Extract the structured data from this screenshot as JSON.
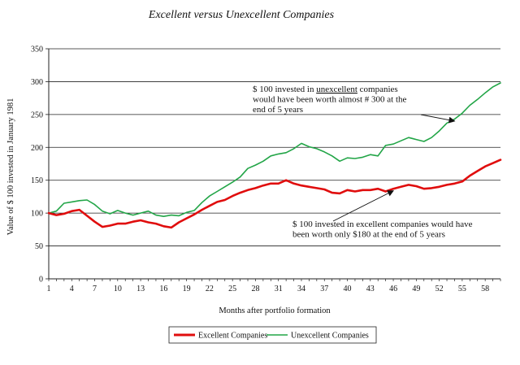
{
  "chart_data": {
    "type": "line",
    "title": "Excellent versus Unexcellent Companies",
    "xlabel": "Months after portfolio formation",
    "ylabel": "Value of $ 100 invested in January 1981",
    "ylim": [
      0,
      350
    ],
    "yticks": [
      0,
      50,
      100,
      150,
      200,
      250,
      300,
      350
    ],
    "xlim": [
      1,
      60
    ],
    "xticks": [
      1,
      4,
      7,
      10,
      13,
      16,
      19,
      22,
      25,
      28,
      31,
      34,
      37,
      40,
      43,
      46,
      49,
      52,
      55,
      58
    ],
    "grid": "horizontal",
    "x": [
      1,
      2,
      3,
      4,
      5,
      6,
      7,
      8,
      9,
      10,
      11,
      12,
      13,
      14,
      15,
      16,
      17,
      18,
      19,
      20,
      21,
      22,
      23,
      24,
      25,
      26,
      27,
      28,
      29,
      30,
      31,
      32,
      33,
      34,
      35,
      36,
      37,
      38,
      39,
      40,
      41,
      42,
      43,
      44,
      45,
      46,
      47,
      48,
      49,
      50,
      51,
      52,
      53,
      54,
      55,
      56,
      57,
      58,
      59,
      60
    ],
    "series": [
      {
        "name": "Excellent Companies",
        "color": "#e00d0d",
        "values": [
          100,
          97,
          99,
          103,
          105,
          96,
          87,
          79,
          81,
          84,
          84,
          87,
          89,
          86,
          84,
          80,
          78,
          86,
          92,
          98,
          105,
          111,
          117,
          120,
          126,
          131,
          135,
          138,
          142,
          145,
          145,
          150,
          145,
          142,
          140,
          138,
          136,
          131,
          130,
          135,
          133,
          135,
          135,
          137,
          133,
          137,
          140,
          143,
          141,
          137,
          138,
          140,
          143,
          145,
          148,
          157,
          164,
          171,
          176,
          181
        ]
      },
      {
        "name": "Unexcellent Companies",
        "color": "#22a547",
        "values": [
          100,
          103,
          115,
          117,
          119,
          120,
          113,
          103,
          99,
          104,
          100,
          97,
          100,
          103,
          97,
          95,
          97,
          96,
          101,
          104,
          116,
          126,
          133,
          140,
          147,
          155,
          168,
          173,
          179,
          187,
          190,
          192,
          198,
          206,
          201,
          198,
          193,
          187,
          179,
          184,
          183,
          185,
          189,
          187,
          203,
          205,
          210,
          215,
          212,
          209,
          215,
          225,
          237,
          243,
          252,
          264,
          273,
          283,
          292,
          298
        ]
      }
    ],
    "legend_position": "bottom-center",
    "annotations": [
      {
        "lines": [
          {
            "parts": [
              {
                "text": "$ 100 invested in "
              },
              {
                "text": "unexcellent",
                "underline": true
              },
              {
                "text": " companies"
              }
            ]
          },
          {
            "parts": [
              {
                "text": "would have been worth almost # 300 at the"
              }
            ]
          },
          {
            "parts": [
              {
                "text": "end of 5 years"
              }
            ]
          }
        ],
        "points_to": {
          "x": 54,
          "y": 240
        }
      },
      {
        "lines": [
          {
            "parts": [
              {
                "text": "$ 100 invested in excellent companies would have"
              }
            ]
          },
          {
            "parts": [
              {
                "text": "been worth only $180 at the end of 5 years"
              }
            ]
          }
        ],
        "points_to": {
          "x": 46,
          "y": 134
        }
      }
    ]
  }
}
